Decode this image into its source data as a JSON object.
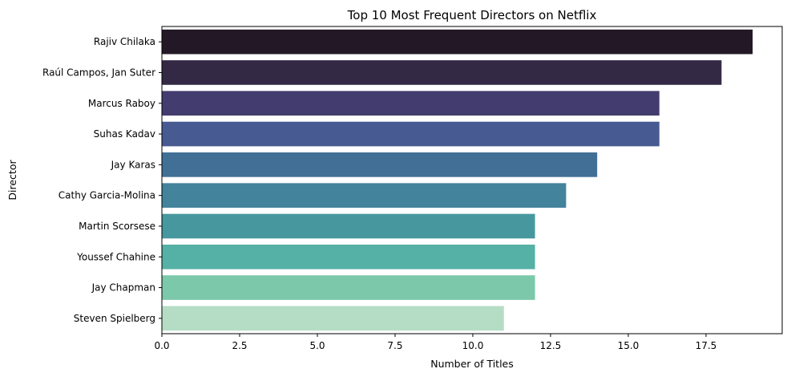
{
  "chart_data": {
    "type": "bar",
    "orientation": "horizontal",
    "title": "Top 10 Most Frequent Directors on Netflix",
    "xlabel": "Number of Titles",
    "ylabel": "Director",
    "categories": [
      "Rajiv Chilaka",
      "Raúl Campos, Jan Suter",
      "Marcus Raboy",
      "Suhas Kadav",
      "Jay Karas",
      "Cathy Garcia-Molina",
      "Martin Scorsese",
      "Youssef Chahine",
      "Jay Chapman",
      "Steven Spielberg"
    ],
    "values": [
      19,
      18,
      16,
      16,
      14,
      13,
      12,
      12,
      12,
      11
    ],
    "colors": [
      "#231826",
      "#342944",
      "#433c6e",
      "#475a91",
      "#416f96",
      "#43839b",
      "#46989e",
      "#55b0a5",
      "#7bc8aa",
      "#b5ddc5"
    ],
    "xlim": [
      0,
      19.95
    ],
    "xticks": [
      0.0,
      2.5,
      5.0,
      7.5,
      10.0,
      12.5,
      15.0,
      17.5
    ],
    "xtick_labels": [
      "0.0",
      "2.5",
      "5.0",
      "7.5",
      "10.0",
      "12.5",
      "15.0",
      "17.5"
    ],
    "grid": false,
    "legend": "none"
  }
}
